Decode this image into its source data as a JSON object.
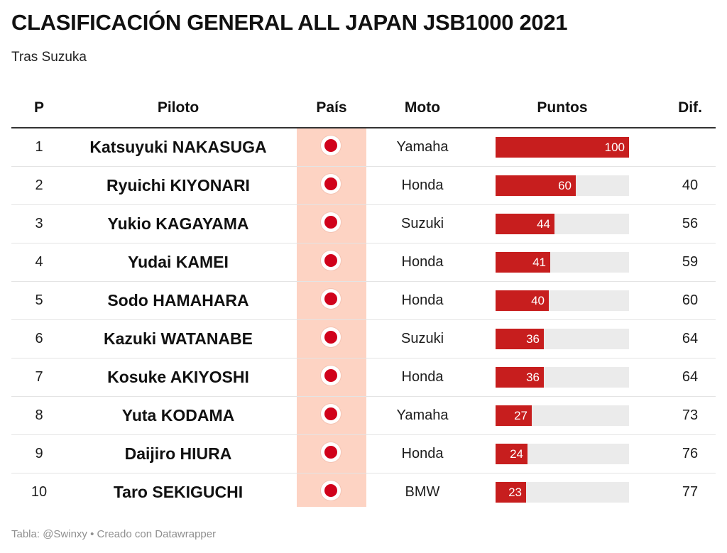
{
  "header": {
    "title": "CLASIFICACIÓN GENERAL ALL JAPAN JSB1000 2021",
    "subtitle": "Tras Suzuka"
  },
  "columns": {
    "p": "P",
    "piloto": "Piloto",
    "pais": "País",
    "moto": "Moto",
    "puntos": "Puntos",
    "dif": "Dif."
  },
  "colors": {
    "bar": "#c71e1e",
    "bar_track": "#ebebeb",
    "pais_band": "#fdd3c3",
    "flag_red": "#d0021b"
  },
  "chart_data": {
    "type": "table",
    "bar_column": "Puntos",
    "bar_max": 100,
    "rows": [
      {
        "p": "1",
        "piloto": "Katsuyuki NAKASUGA",
        "pais": "japan-flag-icon",
        "moto": "Yamaha",
        "puntos": 100,
        "dif": ""
      },
      {
        "p": "2",
        "piloto": "Ryuichi KIYONARI",
        "pais": "japan-flag-icon",
        "moto": "Honda",
        "puntos": 60,
        "dif": "40"
      },
      {
        "p": "3",
        "piloto": "Yukio KAGAYAMA",
        "pais": "japan-flag-icon",
        "moto": "Suzuki",
        "puntos": 44,
        "dif": "56"
      },
      {
        "p": "4",
        "piloto": "Yudai KAMEI",
        "pais": "japan-flag-icon",
        "moto": "Honda",
        "puntos": 41,
        "dif": "59"
      },
      {
        "p": "5",
        "piloto": "Sodo HAMAHARA",
        "pais": "japan-flag-icon",
        "moto": "Honda",
        "puntos": 40,
        "dif": "60"
      },
      {
        "p": "6",
        "piloto": "Kazuki WATANABE",
        "pais": "japan-flag-icon",
        "moto": "Suzuki",
        "puntos": 36,
        "dif": "64"
      },
      {
        "p": "7",
        "piloto": "Kosuke AKIYOSHI",
        "pais": "japan-flag-icon",
        "moto": "Honda",
        "puntos": 36,
        "dif": "64"
      },
      {
        "p": "8",
        "piloto": "Yuta KODAMA",
        "pais": "japan-flag-icon",
        "moto": "Yamaha",
        "puntos": 27,
        "dif": "73"
      },
      {
        "p": "9",
        "piloto": "Daijiro HIURA",
        "pais": "japan-flag-icon",
        "moto": "Honda",
        "puntos": 24,
        "dif": "76"
      },
      {
        "p": "10",
        "piloto": "Taro SEKIGUCHI",
        "pais": "japan-flag-icon",
        "moto": "BMW",
        "puntos": 23,
        "dif": "77"
      }
    ]
  },
  "footer": {
    "credit": "Tabla: @Swinxy • Creado con Datawrapper"
  }
}
